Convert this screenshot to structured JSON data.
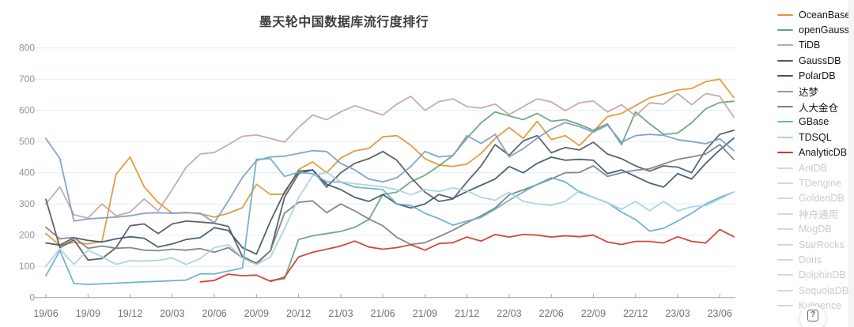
{
  "title": "墨天轮中国数据库流行度排行",
  "help_button": {
    "label": "?"
  },
  "axis_style": {
    "grid_color": "#e3ebf6",
    "axis_color": "#9aa0a6",
    "tick_label_color": "#707070",
    "y_label_color": "#8f9398"
  },
  "legend": {
    "disabled_swatch_color": "#d7d7d7",
    "items": [
      {
        "label": "OceanBase",
        "color": "#e2952f",
        "active": true
      },
      {
        "label": "openGauss",
        "color": "#67a27c",
        "active": true
      },
      {
        "label": "TiDB",
        "color": "#c7a59d",
        "active": true
      },
      {
        "label": "GaussDB",
        "color": "#54585b",
        "active": true
      },
      {
        "label": "PolarDB",
        "color": "#3d566f",
        "active": true
      },
      {
        "label": "达梦",
        "color": "#7e9cc5",
        "active": true
      },
      {
        "label": "人大金仓",
        "color": "#7f7f7f",
        "active": true
      },
      {
        "label": "GBase",
        "color": "#66aecb",
        "active": true
      },
      {
        "label": "TDSQL",
        "color": "#a2d4df",
        "active": true
      },
      {
        "label": "AnalyticDB",
        "color": "#d6362b",
        "active": true
      },
      {
        "label": "AntDB",
        "color": "#d7d7d7",
        "active": false
      },
      {
        "label": "TDengine",
        "color": "#d7d7d7",
        "active": false
      },
      {
        "label": "GoldenDB",
        "color": "#d7d7d7",
        "active": false
      },
      {
        "label": "神舟通用",
        "color": "#d7d7d7",
        "active": false
      },
      {
        "label": "MogDB",
        "color": "#d7d7d7",
        "active": false
      },
      {
        "label": "StarRocks",
        "color": "#d7d7d7",
        "active": false
      },
      {
        "label": "Doris",
        "color": "#d7d7d7",
        "active": false
      },
      {
        "label": "DolphinDB",
        "color": "#d7d7d7",
        "active": false
      },
      {
        "label": "SequoiaDB",
        "color": "#d7d7d7",
        "active": false
      },
      {
        "label": "Kyligence",
        "color": "#d7d7d7",
        "active": false
      }
    ]
  },
  "chart_data": {
    "type": "line",
    "title": "墨天轮中国数据库流行度排行",
    "xlabel": "",
    "ylabel": "",
    "ylim": [
      0,
      800
    ],
    "y_ticks": [
      0,
      100,
      200,
      300,
      400,
      500,
      600,
      700,
      800
    ],
    "grid": true,
    "legend_position": "right",
    "x_tick_every": 3,
    "x": [
      "19/06",
      "19/07",
      "19/08",
      "19/09",
      "19/10",
      "19/11",
      "19/12",
      "20/01",
      "20/02",
      "20/03",
      "20/04",
      "20/05",
      "20/06",
      "20/07",
      "20/08",
      "20/09",
      "20/10",
      "20/11",
      "20/12",
      "21/01",
      "21/02",
      "21/03",
      "21/04",
      "21/05",
      "21/06",
      "21/07",
      "21/08",
      "21/09",
      "21/10",
      "21/11",
      "21/12",
      "22/01",
      "22/02",
      "22/03",
      "22/04",
      "22/05",
      "22/06",
      "22/07",
      "22/08",
      "22/09",
      "22/10",
      "22/11",
      "22/12",
      "23/01",
      "23/02",
      "23/03",
      "23/04",
      "23/05",
      "23/06",
      "23/07"
    ],
    "visible_x_tick_labels": [
      "19/06",
      "19/09",
      "19/12",
      "20/03",
      "20/06",
      "20/09",
      "20/12",
      "21/03",
      "21/06",
      "21/09",
      "21/12",
      "22/03",
      "22/06",
      "22/09",
      "22/12",
      "23/03",
      "23/06"
    ],
    "series": [
      {
        "name": "OceanBase",
        "color": "#e2952f",
        "values": [
          205,
          167,
          177,
          172,
          180,
          395,
          450,
          355,
          305,
          270,
          273,
          268,
          258,
          270,
          288,
          363,
          330,
          332,
          410,
          435,
          400,
          447,
          470,
          478,
          515,
          519,
          488,
          445,
          425,
          420,
          428,
          462,
          510,
          545,
          510,
          565,
          506,
          519,
          487,
          533,
          580,
          590,
          615,
          640,
          652,
          665,
          670,
          692,
          700,
          641
        ]
      },
      {
        "name": "openGauss",
        "color": "#67a27c",
        "values": [
          null,
          null,
          null,
          null,
          null,
          null,
          null,
          null,
          null,
          null,
          null,
          null,
          null,
          null,
          null,
          null,
          55,
          60,
          186,
          198,
          205,
          212,
          225,
          250,
          330,
          338,
          371,
          392,
          422,
          456,
          511,
          560,
          595,
          582,
          570,
          590,
          565,
          570,
          555,
          536,
          557,
          490,
          595,
          557,
          523,
          527,
          560,
          605,
          625,
          629
        ]
      },
      {
        "name": "TiDB",
        "color": "#c7a59d",
        "values": [
          300,
          355,
          265,
          255,
          300,
          262,
          274,
          316,
          278,
          346,
          418,
          460,
          465,
          490,
          517,
          521,
          510,
          498,
          545,
          585,
          570,
          595,
          615,
          600,
          585,
          620,
          645,
          600,
          628,
          637,
          612,
          607,
          620,
          586,
          612,
          637,
          627,
          599,
          624,
          630,
          595,
          618,
          582,
          624,
          620,
          654,
          618,
          654,
          645,
          578
        ]
      },
      {
        "name": "GaussDB",
        "color": "#54585b",
        "values": [
          315,
          160,
          185,
          120,
          125,
          160,
          230,
          236,
          205,
          236,
          245,
          242,
          238,
          228,
          131,
          110,
          150,
          321,
          397,
          409,
          354,
          400,
          430,
          445,
          468,
          440,
          385,
          338,
          308,
          316,
          371,
          422,
          490,
          456,
          502,
          519,
          464,
          481,
          473,
          498,
          460,
          445,
          422,
          405,
          422,
          418,
          400,
          473,
          523,
          536
        ]
      },
      {
        "name": "PolarDB",
        "color": "#3d566f",
        "values": [
          175,
          168,
          192,
          183,
          178,
          188,
          195,
          190,
          162,
          172,
          186,
          192,
          224,
          215,
          160,
          139,
          245,
          338,
          405,
          409,
          363,
          346,
          321,
          308,
          330,
          300,
          287,
          300,
          330,
          318,
          340,
          360,
          380,
          420,
          400,
          430,
          450,
          440,
          443,
          440,
          397,
          409,
          388,
          367,
          354,
          397,
          380,
          430,
          473,
          511
        ]
      },
      {
        "name": "达梦",
        "color": "#7e9cc5",
        "values": [
          510,
          445,
          245,
          252,
          255,
          258,
          262,
          270,
          272,
          270,
          272,
          270,
          240,
          310,
          385,
          439,
          451,
          453,
          462,
          471,
          468,
          430,
          409,
          380,
          371,
          384,
          420,
          468,
          451,
          455,
          519,
          494,
          523,
          451,
          477,
          511,
          540,
          561,
          548,
          530,
          553,
          498,
          519,
          523,
          520,
          506,
          500,
          493,
          509,
          471
        ]
      },
      {
        "name": "人大金仓",
        "color": "#7f7f7f",
        "values": [
          225,
          188,
          193,
          158,
          165,
          158,
          160,
          152,
          150,
          155,
          152,
          157,
          145,
          160,
          127,
          107,
          150,
          270,
          305,
          310,
          272,
          300,
          278,
          252,
          230,
          193,
          170,
          176,
          195,
          216,
          240,
          262,
          287,
          329,
          345,
          362,
          380,
          400,
          401,
          422,
          388,
          400,
          408,
          413,
          428,
          443,
          451,
          460,
          490,
          443
        ]
      },
      {
        "name": "GBase",
        "color": "#66aecb",
        "values": [
          70,
          150,
          45,
          42,
          44,
          46,
          48,
          50,
          52,
          54,
          56,
          76,
          76,
          85,
          95,
          443,
          445,
          388,
          401,
          397,
          371,
          370,
          354,
          350,
          346,
          300,
          295,
          270,
          253,
          232,
          245,
          257,
          283,
          312,
          338,
          363,
          384,
          371,
          338,
          321,
          304,
          274,
          250,
          213,
          222,
          245,
          270,
          300,
          321,
          338
        ]
      },
      {
        "name": "TDSQL",
        "color": "#a2d4df",
        "values": [
          100,
          156,
          106,
          152,
          131,
          106,
          118,
          117,
          119,
          127,
          106,
          125,
          160,
          169,
          127,
          106,
          130,
          220,
          320,
          390,
          401,
          371,
          365,
          360,
          355,
          346,
          329,
          346,
          340,
          352,
          342,
          321,
          312,
          338,
          308,
          300,
          296,
          308,
          342,
          321,
          304,
          283,
          308,
          278,
          308,
          278,
          291,
          295,
          316,
          338
        ]
      },
      {
        "name": "AnalyticDB",
        "color": "#d6362b",
        "values": [
          null,
          null,
          null,
          null,
          null,
          null,
          null,
          null,
          null,
          null,
          null,
          50,
          55,
          75,
          70,
          72,
          52,
          65,
          130,
          145,
          155,
          165,
          181,
          162,
          155,
          160,
          169,
          152,
          173,
          176,
          194,
          181,
          202,
          194,
          202,
          200,
          194,
          198,
          195,
          200,
          178,
          170,
          180,
          180,
          175,
          195,
          180,
          175,
          218,
          195
        ]
      }
    ]
  }
}
